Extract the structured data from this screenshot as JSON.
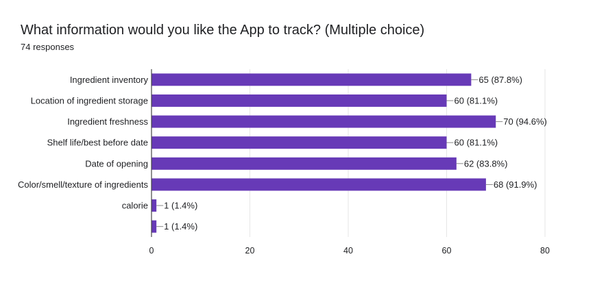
{
  "title": "What information would you like the App to track? (Multiple choice)",
  "subtitle": "74 responses",
  "colors": {
    "bar": "#673ab7",
    "grid": "#e6e6e6",
    "axis": "#444444"
  },
  "chart_data": {
    "type": "bar",
    "orientation": "horizontal",
    "categories": [
      "Ingredient inventory",
      "Location of ingredient storage",
      "Ingredient freshness",
      "Shelf life/best before date",
      "Date of opening",
      "Color/smell/texture of ingredients",
      "calorie",
      ""
    ],
    "values": [
      65,
      60,
      70,
      60,
      62,
      68,
      1,
      1
    ],
    "data_labels": [
      "65 (87.8%)",
      "60 (81.1%)",
      "70 (94.6%)",
      "60 (81.1%)",
      "62 (83.8%)",
      "68 (91.9%)",
      "1 (1.4%)",
      "1 (1.4%)"
    ],
    "xlim": [
      0,
      80
    ],
    "xticks": [
      0,
      20,
      40,
      60,
      80
    ],
    "grid": true,
    "legend": "none"
  }
}
